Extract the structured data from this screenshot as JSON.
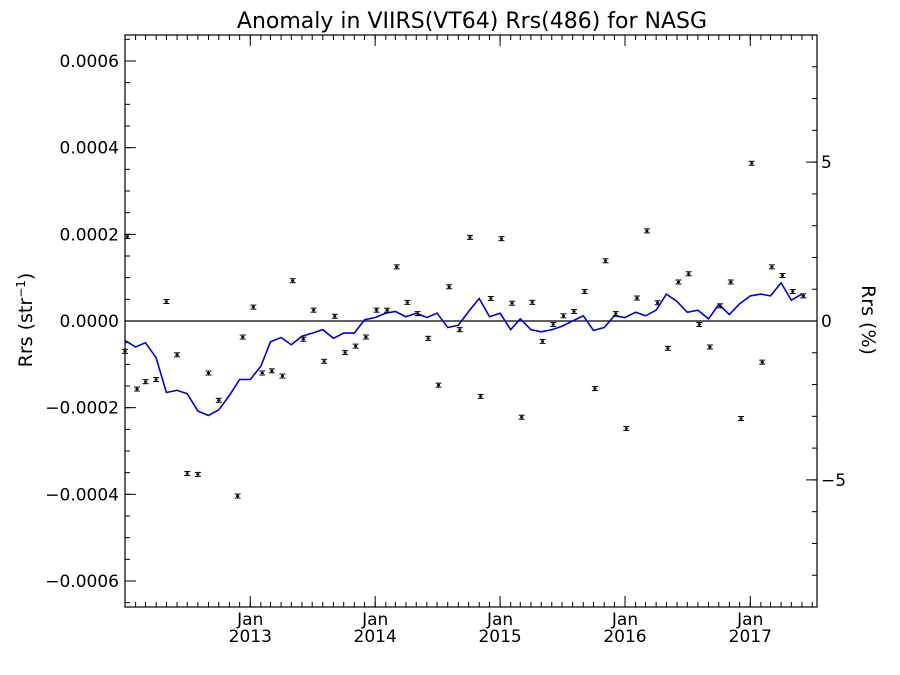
{
  "chart_data": {
    "type": "scatter",
    "title": "Anomaly in VIIRS(VT64) Rrs(486) for NASG",
    "ylabel_left": "Rrs (str⁻¹)",
    "ylabel_right": "Rrs (%)",
    "ylim_left": [
      -0.00066,
      0.00066
    ],
    "ylim_right": [
      -9.0,
      9.0
    ],
    "xlim": [
      "2012-01-01",
      "2017-07-15"
    ],
    "left_ticks": [
      {
        "value": 0.0006,
        "label": "0.0006"
      },
      {
        "value": 0.0004,
        "label": "0.0004"
      },
      {
        "value": 0.0002,
        "label": "0.0002"
      },
      {
        "value": 0.0,
        "label": "0.0000"
      },
      {
        "value": -0.0002,
        "label": "−0.0002"
      },
      {
        "value": -0.0004,
        "label": "−0.0004"
      },
      {
        "value": -0.0006,
        "label": "−0.0006"
      }
    ],
    "right_ticks": [
      {
        "value": 5,
        "label": "5"
      },
      {
        "value": 0,
        "label": "0"
      },
      {
        "value": -5,
        "label": "−5"
      }
    ],
    "x_ticks": [
      {
        "date": "2013-01-01",
        "month": "Jan",
        "year": "2013"
      },
      {
        "date": "2014-01-01",
        "month": "Jan",
        "year": "2014"
      },
      {
        "date": "2015-01-01",
        "month": "Jan",
        "year": "2015"
      },
      {
        "date": "2016-01-01",
        "month": "Jan",
        "year": "2016"
      },
      {
        "date": "2017-01-01",
        "month": "Jan",
        "year": "2017"
      }
    ],
    "zero_line": 0.0,
    "series": [
      {
        "kind": "errorbar_points",
        "color": "#000000",
        "points": [
          {
            "date": "2012-01-01",
            "y": -7e-05
          },
          {
            "date": "2012-01-08",
            "y": 0.000195
          },
          {
            "date": "2012-02-05",
            "y": -0.000157
          },
          {
            "date": "2012-03-01",
            "y": -0.00014
          },
          {
            "date": "2012-04-01",
            "y": -0.000135
          },
          {
            "date": "2012-05-01",
            "y": 4.5e-05
          },
          {
            "date": "2012-06-01",
            "y": -7.8e-05
          },
          {
            "date": "2012-07-01",
            "y": -0.000352
          },
          {
            "date": "2012-08-01",
            "y": -0.000354
          },
          {
            "date": "2012-09-01",
            "y": -0.00012
          },
          {
            "date": "2012-10-01",
            "y": -0.000183
          },
          {
            "date": "2012-11-25",
            "y": -0.000404
          },
          {
            "date": "2012-12-10",
            "y": -3.7e-05
          },
          {
            "date": "2013-01-10",
            "y": 3.2e-05
          },
          {
            "date": "2013-02-05",
            "y": -0.00012
          },
          {
            "date": "2013-03-05",
            "y": -0.000115
          },
          {
            "date": "2013-04-05",
            "y": -0.000127
          },
          {
            "date": "2013-05-05",
            "y": 9.3e-05
          },
          {
            "date": "2013-06-05",
            "y": -4.2e-05
          },
          {
            "date": "2013-07-05",
            "y": 2.5e-05
          },
          {
            "date": "2013-08-05",
            "y": -9.3e-05
          },
          {
            "date": "2013-09-05",
            "y": 1.1e-05
          },
          {
            "date": "2013-10-05",
            "y": -7.3e-05
          },
          {
            "date": "2013-11-05",
            "y": -5.8e-05
          },
          {
            "date": "2013-12-05",
            "y": -3.7e-05
          },
          {
            "date": "2014-01-05",
            "y": 2.5e-05
          },
          {
            "date": "2014-02-05",
            "y": 2.5e-05
          },
          {
            "date": "2014-03-05",
            "y": 0.000125
          },
          {
            "date": "2014-04-05",
            "y": 4.3e-05
          },
          {
            "date": "2014-05-05",
            "y": 1.7e-05
          },
          {
            "date": "2014-06-05",
            "y": -4e-05
          },
          {
            "date": "2014-07-05",
            "y": -0.000148
          },
          {
            "date": "2014-08-05",
            "y": 7.9e-05
          },
          {
            "date": "2014-09-05",
            "y": -2e-05
          },
          {
            "date": "2014-10-05",
            "y": 0.000193
          },
          {
            "date": "2014-11-05",
            "y": -0.000174
          },
          {
            "date": "2014-12-05",
            "y": 5.2e-05
          },
          {
            "date": "2015-01-05",
            "y": 0.00019
          },
          {
            "date": "2015-02-05",
            "y": 4.1e-05
          },
          {
            "date": "2015-03-05",
            "y": -0.000222
          },
          {
            "date": "2015-04-05",
            "y": 4.3e-05
          },
          {
            "date": "2015-05-05",
            "y": -4.7e-05
          },
          {
            "date": "2015-06-05",
            "y": -8e-06
          },
          {
            "date": "2015-07-05",
            "y": 1.2e-05
          },
          {
            "date": "2015-08-05",
            "y": 2.2e-05
          },
          {
            "date": "2015-09-05",
            "y": 6.8e-05
          },
          {
            "date": "2015-10-05",
            "y": -0.000156
          },
          {
            "date": "2015-11-05",
            "y": 0.000139
          },
          {
            "date": "2015-12-05",
            "y": 1.7e-05
          },
          {
            "date": "2016-01-05",
            "y": -0.000248
          },
          {
            "date": "2016-02-05",
            "y": 5.3e-05
          },
          {
            "date": "2016-03-05",
            "y": 0.000208
          },
          {
            "date": "2016-04-05",
            "y": 4.2e-05
          },
          {
            "date": "2016-05-05",
            "y": -6.3e-05
          },
          {
            "date": "2016-06-05",
            "y": 9e-05
          },
          {
            "date": "2016-07-05",
            "y": 0.000109
          },
          {
            "date": "2016-08-05",
            "y": -8e-06
          },
          {
            "date": "2016-09-05",
            "y": -6e-05
          },
          {
            "date": "2016-10-05",
            "y": 3.5e-05
          },
          {
            "date": "2016-11-05",
            "y": 9e-05
          },
          {
            "date": "2016-12-05",
            "y": -0.000225
          },
          {
            "date": "2017-01-05",
            "y": 0.000364
          },
          {
            "date": "2017-02-05",
            "y": -9.5e-05
          },
          {
            "date": "2017-03-05",
            "y": 0.000125
          },
          {
            "date": "2017-04-05",
            "y": 0.000105
          },
          {
            "date": "2017-05-05",
            "y": 6.8e-05
          },
          {
            "date": "2017-06-05",
            "y": 5.8e-05
          }
        ]
      },
      {
        "kind": "line",
        "color": "#0000dd",
        "points": [
          {
            "date": "2012-01-01",
            "y": -4.5e-05
          },
          {
            "date": "2012-02-01",
            "y": -6e-05
          },
          {
            "date": "2012-03-01",
            "y": -5e-05
          },
          {
            "date": "2012-04-01",
            "y": -8.5e-05
          },
          {
            "date": "2012-05-01",
            "y": -0.000165
          },
          {
            "date": "2012-06-01",
            "y": -0.00016
          },
          {
            "date": "2012-07-01",
            "y": -0.000168
          },
          {
            "date": "2012-08-01",
            "y": -0.000208
          },
          {
            "date": "2012-09-01",
            "y": -0.000218
          },
          {
            "date": "2012-10-01",
            "y": -0.000205
          },
          {
            "date": "2012-11-01",
            "y": -0.000172
          },
          {
            "date": "2012-12-01",
            "y": -0.000135
          },
          {
            "date": "2013-01-01",
            "y": -0.000135
          },
          {
            "date": "2013-02-01",
            "y": -0.000104
          },
          {
            "date": "2013-03-01",
            "y": -4.8e-05
          },
          {
            "date": "2013-04-01",
            "y": -3.8e-05
          },
          {
            "date": "2013-05-01",
            "y": -5.5e-05
          },
          {
            "date": "2013-06-01",
            "y": -3.5e-05
          },
          {
            "date": "2013-07-01",
            "y": -2.8e-05
          },
          {
            "date": "2013-08-01",
            "y": -2e-05
          },
          {
            "date": "2013-09-01",
            "y": -4e-05
          },
          {
            "date": "2013-10-01",
            "y": -2.8e-05
          },
          {
            "date": "2013-11-01",
            "y": -2.8e-05
          },
          {
            "date": "2013-12-01",
            "y": 3e-06
          },
          {
            "date": "2014-01-01",
            "y": 8e-06
          },
          {
            "date": "2014-02-01",
            "y": 1.8e-05
          },
          {
            "date": "2014-03-01",
            "y": 2.2e-05
          },
          {
            "date": "2014-04-01",
            "y": 1e-05
          },
          {
            "date": "2014-05-01",
            "y": 1.8e-05
          },
          {
            "date": "2014-06-01",
            "y": 8e-06
          },
          {
            "date": "2014-07-01",
            "y": 1.8e-05
          },
          {
            "date": "2014-08-01",
            "y": -1.5e-05
          },
          {
            "date": "2014-09-01",
            "y": -1e-05
          },
          {
            "date": "2014-10-01",
            "y": 2.2e-05
          },
          {
            "date": "2014-11-01",
            "y": 5.2e-05
          },
          {
            "date": "2014-12-01",
            "y": 1e-05
          },
          {
            "date": "2015-01-01",
            "y": 1.8e-05
          },
          {
            "date": "2015-02-01",
            "y": -2e-05
          },
          {
            "date": "2015-03-01",
            "y": 5e-06
          },
          {
            "date": "2015-04-01",
            "y": -2e-05
          },
          {
            "date": "2015-05-01",
            "y": -2.5e-05
          },
          {
            "date": "2015-06-01",
            "y": -2e-05
          },
          {
            "date": "2015-07-01",
            "y": -1.2e-05
          },
          {
            "date": "2015-08-01",
            "y": 0.0
          },
          {
            "date": "2015-09-01",
            "y": 1.2e-05
          },
          {
            "date": "2015-10-01",
            "y": -2.2e-05
          },
          {
            "date": "2015-11-01",
            "y": -1.5e-05
          },
          {
            "date": "2015-12-01",
            "y": 1.2e-05
          },
          {
            "date": "2016-01-01",
            "y": 8e-06
          },
          {
            "date": "2016-02-01",
            "y": 2e-05
          },
          {
            "date": "2016-03-01",
            "y": 1.2e-05
          },
          {
            "date": "2016-04-01",
            "y": 2.5e-05
          },
          {
            "date": "2016-05-01",
            "y": 6.2e-05
          },
          {
            "date": "2016-06-01",
            "y": 4.5e-05
          },
          {
            "date": "2016-07-01",
            "y": 2e-05
          },
          {
            "date": "2016-08-01",
            "y": 2.5e-05
          },
          {
            "date": "2016-09-01",
            "y": 5e-06
          },
          {
            "date": "2016-10-01",
            "y": 3.8e-05
          },
          {
            "date": "2016-11-01",
            "y": 1.5e-05
          },
          {
            "date": "2016-12-01",
            "y": 4e-05
          },
          {
            "date": "2017-01-01",
            "y": 5.8e-05
          },
          {
            "date": "2017-02-01",
            "y": 6.2e-05
          },
          {
            "date": "2017-03-01",
            "y": 5.8e-05
          },
          {
            "date": "2017-04-01",
            "y": 8.8e-05
          },
          {
            "date": "2017-05-01",
            "y": 4.8e-05
          },
          {
            "date": "2017-06-01",
            "y": 6.2e-05
          }
        ]
      }
    ]
  }
}
